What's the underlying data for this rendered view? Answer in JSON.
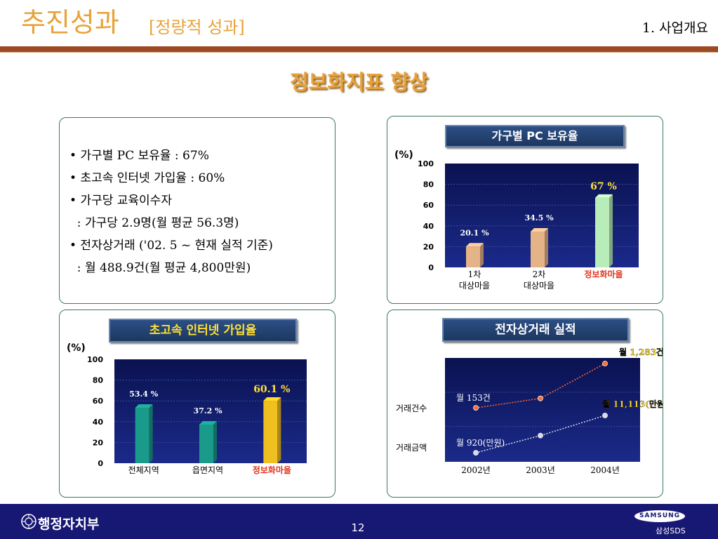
{
  "header": {
    "title": "추진성과",
    "subtitle": "[정량적 성과]",
    "section": "1. 사업개요"
  },
  "headline": "정보화지표 향상",
  "summary": {
    "lines": [
      "• 가구별 PC 보유율 : 67%",
      "• 초고속 인터넷 가입율 : 60%",
      "• 가구당 교육이수자",
      "  : 가구당 2.9명(월 평균 56.3명)",
      "• 전자상거래 ('02. 5 ~ 현재 실적 기준)",
      "  : 월 488.9건(월 평균 4,800만원)"
    ]
  },
  "colors": {
    "title_orange": "#e8a23a",
    "plot_bg": "#0f1a6a",
    "highlight_red": "#e0331c",
    "highlight_yellow": "#ffe033",
    "footer_navy": "#171774"
  },
  "chart_data": [
    {
      "type": "bar",
      "title": "가구별 PC 보유율",
      "ylabel": "(%)",
      "ylim": [
        0,
        100
      ],
      "yticks": [
        "100",
        "80",
        "60",
        "40",
        "20",
        "0"
      ],
      "categories": [
        {
          "line1": "1차",
          "line2": "대상마을"
        },
        {
          "line1": "2차",
          "line2": "대상마을"
        },
        {
          "line1": "정보화마을",
          "line2": ""
        }
      ],
      "values": [
        20.1,
        34.5,
        67
      ],
      "value_labels": [
        "20.1 %",
        "34.5 %",
        "67 %"
      ],
      "bar_colors": [
        "#e4b488",
        "#e4b488",
        "#b8ecb8"
      ],
      "highlight_category": 2,
      "grid": true
    },
    {
      "type": "bar",
      "title": "초고속 인터넷 가입율",
      "ylabel": "(%)",
      "ylim": [
        0,
        100
      ],
      "yticks": [
        "100",
        "80",
        "60",
        "40",
        "20",
        "0"
      ],
      "categories": [
        {
          "line1": "전체지역",
          "line2": ""
        },
        {
          "line1": "읍면지역",
          "line2": ""
        },
        {
          "line1": "정보화마을",
          "line2": ""
        }
      ],
      "values": [
        53.4,
        37.2,
        60.1
      ],
      "value_labels": [
        "53.4 %",
        "37.2 %",
        "60.1 %"
      ],
      "bar_colors": [
        "#1a9a8a",
        "#1a9a8a",
        "#f0c020"
      ],
      "highlight_category": 2,
      "grid": true
    },
    {
      "type": "line",
      "title": "전자상거래 실적",
      "x": [
        "2002년",
        "2003년",
        "2004년"
      ],
      "series": [
        {
          "name": "거래건수",
          "values": [
            153,
            241,
            1283
          ],
          "color": "#ff6a2a",
          "annotations": [
            "월 153건",
            "",
            "월 1,283건"
          ]
        },
        {
          "name": "거래금액",
          "values": [
            920,
            2900,
            11113
          ],
          "color": "#d8d8e8",
          "annotations": [
            "월 920(만원)",
            "",
            "월 11,113(만원)"
          ]
        }
      ],
      "grid": true
    }
  ],
  "footer": {
    "ministry": "행정자치부",
    "page_number": "12",
    "logo_text": "SAMSUNG",
    "logo_sub": "삼성SDS"
  }
}
